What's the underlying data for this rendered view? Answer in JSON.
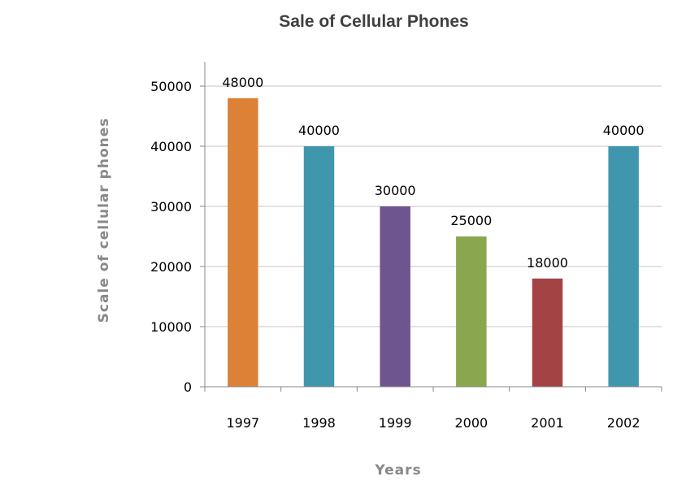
{
  "chart_data": {
    "type": "bar",
    "title": "Sale of Cellular Phones",
    "xlabel": "Years",
    "ylabel": "Scale of cellular phones",
    "categories": [
      "1997",
      "1998",
      "1999",
      "2000",
      "2001",
      "2002"
    ],
    "values": [
      48000,
      40000,
      30000,
      25000,
      18000,
      40000
    ],
    "data_labels": [
      "48000",
      "40000",
      "30000",
      "25000",
      "18000",
      "40000"
    ],
    "ylim": [
      0,
      50000
    ],
    "yticks": [
      0,
      10000,
      20000,
      30000,
      40000,
      50000
    ],
    "ytick_labels": [
      "0",
      "10000",
      "20000",
      "30000",
      "40000",
      "50000"
    ],
    "colors": [
      "#dd8136",
      "#4097ad",
      "#6f5590",
      "#8aa64e",
      "#a44344",
      "#4097ad"
    ],
    "grid": true,
    "legend": "none"
  }
}
